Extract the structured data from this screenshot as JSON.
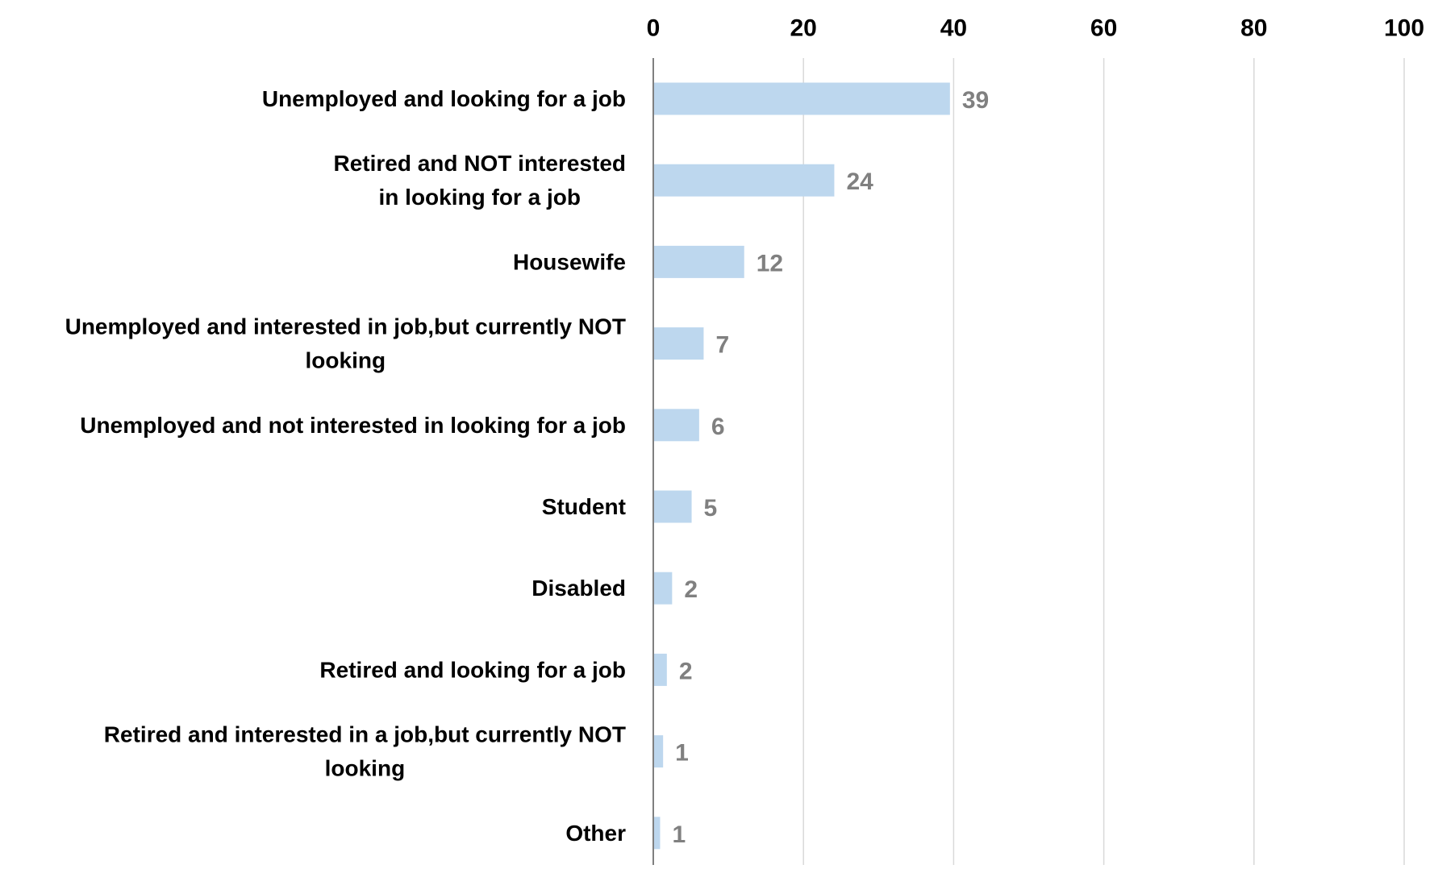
{
  "chart_data": {
    "type": "bar",
    "orientation": "horizontal",
    "categories": [
      "Unemployed and looking for a job",
      "Retired and NOT interested in looking for a job",
      "Housewife",
      "Unemployed and interested in job,but currently NOT looking",
      "Unemployed and not interested in looking for a job",
      "Student",
      "Disabled",
      "Retired and looking for a job",
      "Retired and interested in a job,but currently NOT looking",
      "Other"
    ],
    "category_label_lines": [
      [
        "Unemployed and looking for a job"
      ],
      [
        "Retired and NOT interested",
        "in looking for a job"
      ],
      [
        "Housewife"
      ],
      [
        "Unemployed and interested in job,but currently NOT",
        "looking"
      ],
      [
        "Unemployed and not interested in looking for a job"
      ],
      [
        "Student"
      ],
      [
        "Disabled"
      ],
      [
        "Retired and looking for a job"
      ],
      [
        "Retired and interested in a job,but currently NOT",
        "looking"
      ],
      [
        "Other"
      ]
    ],
    "values": [
      39.4,
      24,
      12,
      6.6,
      6,
      5,
      2.4,
      1.7,
      1.2,
      0.8
    ],
    "data_labels": [
      "39",
      "24",
      "12",
      "7",
      "6",
      "5",
      "2",
      "2",
      "1",
      "1"
    ],
    "x_ticks": [
      "0",
      "20",
      "40",
      "60",
      "80",
      "100"
    ],
    "xlim": [
      0,
      100
    ],
    "axis_position": "top",
    "grid": true,
    "legend": "none",
    "title": "",
    "xlabel": "",
    "ylabel": "",
    "colors": {
      "bar": "#BDD7EE",
      "grid": "#D9D9D9",
      "axis": "#808080",
      "data_label": "#808080",
      "text": "#000000"
    }
  }
}
